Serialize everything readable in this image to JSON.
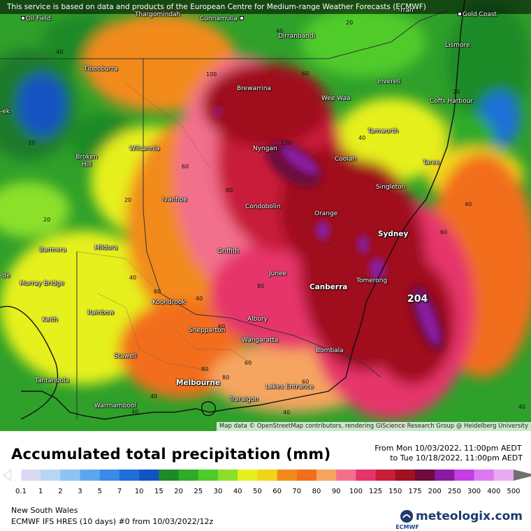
{
  "banner": "This service is based on data and products of the European Centre for Medium-range Weather Forecasts (ECMWF)",
  "attribution": "Map data © OpenStreetMap contributors, rendering GIScience Research Group @ Heidelberg University",
  "title": "Accumulated total precipitation (mm)",
  "date_from": "From Mon 10/03/2022, 11:00pm AEDT",
  "date_to": "to Tue 10/18/2022, 11:00pm AEDT",
  "region": "New South Wales",
  "model": "ECMWF IFS HRES (10 days) #0 from 10/03/2022/12z",
  "brand": "meteologix.com",
  "ecmwf_logo": "ECMWF",
  "max_value": "204",
  "scale": {
    "labels": [
      "0.1",
      "1",
      "2",
      "3",
      "5",
      "7",
      "10",
      "15",
      "20",
      "25",
      "30",
      "40",
      "50",
      "60",
      "70",
      "80",
      "90",
      "100",
      "125",
      "150",
      "175",
      "200",
      "250",
      "300",
      "400",
      "500"
    ],
    "colors": [
      "#d9d9f2",
      "#b5d7f5",
      "#8ec3f2",
      "#5ca7ee",
      "#3b8ae6",
      "#1f6fd8",
      "#1352c2",
      "#1d8a28",
      "#2eab2a",
      "#4fcb2a",
      "#8ce02a",
      "#e6f01c",
      "#f2d41a",
      "#f28a1a",
      "#f26e1a",
      "#f5a560",
      "#f2708c",
      "#e6346a",
      "#c81e3a",
      "#a0101e",
      "#6e0a3c",
      "#8a1aa0",
      "#c43ee6",
      "#de78f0",
      "#e8aaf0",
      "#f2d6f5",
      "#d8d8d8"
    ],
    "arrow_colors": [
      "#ffffff",
      "#707070"
    ]
  },
  "cities": [
    {
      "name": "Oil Field"
    },
    {
      "name": "Thargomindah"
    },
    {
      "name": "Cunnamulla"
    },
    {
      "name": "Gold Coast"
    },
    {
      "name": "Dirranbandi"
    },
    {
      "name": "Lismore"
    },
    {
      "name": "Tibooburra"
    },
    {
      "name": "Inverell"
    },
    {
      "name": "Brewarrina"
    },
    {
      "name": "Coffs Harbour"
    },
    {
      "name": "Wee Waa"
    },
    {
      "name": "Tamworth"
    },
    {
      "name": "Broken Hill"
    },
    {
      "name": "Wilcannia"
    },
    {
      "name": "Nyngan"
    },
    {
      "name": "Coolah"
    },
    {
      "name": "Taree"
    },
    {
      "name": "Singleton"
    },
    {
      "name": "Ivanhoe"
    },
    {
      "name": "Condobolin"
    },
    {
      "name": "Orange"
    },
    {
      "name": "Sydney"
    },
    {
      "name": "Barmera"
    },
    {
      "name": "Mildura"
    },
    {
      "name": "Griffith"
    },
    {
      "name": "Murray Bridge"
    },
    {
      "name": "Junee"
    },
    {
      "name": "Canberra"
    },
    {
      "name": "Tomerong"
    },
    {
      "name": "Koondrook"
    },
    {
      "name": "Keith"
    },
    {
      "name": "Rainbow"
    },
    {
      "name": "Albury"
    },
    {
      "name": "Shepparton"
    },
    {
      "name": "Wangaratta"
    },
    {
      "name": "Stawell"
    },
    {
      "name": "Bombala"
    },
    {
      "name": "Tantanoola"
    },
    {
      "name": "Melbourne"
    },
    {
      "name": "Lakes Entrance"
    },
    {
      "name": "Warrnambool"
    },
    {
      "name": "Traralgon"
    },
    {
      "name": "-ek"
    },
    {
      "name": "-de"
    },
    {
      "name": "-rran"
    }
  ],
  "contours": [
    "40",
    "20",
    "40",
    "20",
    "60",
    "100",
    "80",
    "60",
    "20",
    "40",
    "40",
    "60",
    "40",
    "20",
    "60",
    "80",
    "40",
    "20",
    "60",
    "80",
    "60",
    "40",
    "40",
    "80",
    "60",
    "40",
    "40",
    "150"
  ]
}
